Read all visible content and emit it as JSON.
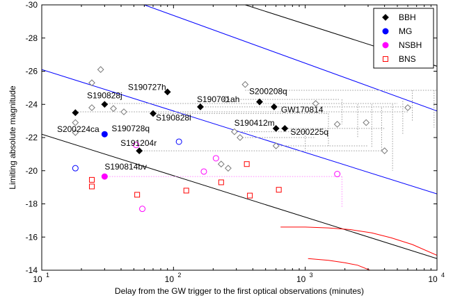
{
  "chart_data": {
    "type": "scatter",
    "xlabel": "Delay from the GW trigger to the first optical observations (minutes)",
    "ylabel": "Limiting absolute magnitude",
    "x_scale": "log",
    "xlim": [
      10,
      10000
    ],
    "ylim": [
      -30,
      -14
    ],
    "y_inverted": true,
    "x_ticks": [
      {
        "value": 10,
        "base": "10",
        "exp": "1"
      },
      {
        "value": 100,
        "base": "10",
        "exp": "2"
      },
      {
        "value": 1000,
        "base": "10",
        "exp": "3"
      },
      {
        "value": 10000,
        "base": "10",
        "exp": "4"
      }
    ],
    "y_ticks": [
      -30,
      -28,
      -26,
      -24,
      -22,
      -20,
      -18,
      -16,
      -14
    ],
    "y_tick_labels": [
      "-30",
      "-28",
      "-26",
      "-24",
      "-22",
      "-20",
      "-18",
      "-16",
      "-14"
    ],
    "legend": {
      "position": "top-right",
      "entries": [
        {
          "name": "BBH",
          "color": "#000000",
          "marker": "diamond-filled"
        },
        {
          "name": "MG",
          "color": "#0000ff",
          "marker": "circle-filled"
        },
        {
          "name": "NSBH",
          "color": "#ff00ff",
          "marker": "circle-filled"
        },
        {
          "name": "BNS",
          "color": "#ff0000",
          "marker": "square-open"
        }
      ]
    },
    "lines": [
      {
        "color": "#000000",
        "points": [
          [
            10,
            -22.2
          ],
          [
            10000,
            -14.7
          ]
        ]
      },
      {
        "color": "#000000",
        "points": [
          [
            350,
            -30
          ],
          [
            10000,
            -26.3
          ]
        ]
      },
      {
        "color": "#0000ff",
        "points": [
          [
            10,
            -26.1
          ],
          [
            10000,
            -18.6
          ]
        ]
      },
      {
        "color": "#0000ff",
        "points": [
          [
            60,
            -30
          ],
          [
            10000,
            -23.6
          ]
        ]
      }
    ],
    "curves": [
      {
        "color": "#ff0000",
        "points": [
          [
            650,
            -16.6
          ],
          [
            1000,
            -16.6
          ],
          [
            1500,
            -16.55
          ],
          [
            2200,
            -16.45
          ],
          [
            3200,
            -16.25
          ],
          [
            4500,
            -15.95
          ],
          [
            6500,
            -15.55
          ],
          [
            10000,
            -14.9
          ]
        ]
      },
      {
        "color": "#ff0000",
        "points": [
          [
            1050,
            -14.7
          ],
          [
            1500,
            -14.6
          ],
          [
            2000,
            -14.45
          ],
          [
            2500,
            -14.3
          ],
          [
            3100,
            -14.0
          ]
        ]
      }
    ],
    "series": [
      {
        "name": "BBH",
        "color": "#000000",
        "marker": "diamond-filled",
        "points": [
          [
            18,
            -23.5
          ],
          [
            30,
            -24.0
          ],
          [
            70,
            -23.45
          ],
          [
            55,
            -21.2
          ],
          [
            90,
            -24.75
          ],
          [
            160,
            -23.85
          ],
          [
            450,
            -24.15
          ],
          [
            580,
            -23.85
          ],
          [
            600,
            -22.55
          ],
          [
            700,
            -22.55
          ]
        ]
      },
      {
        "name": "MG",
        "color": "#0000ff",
        "marker": "circle-filled",
        "points": [
          [
            30,
            -22.2
          ]
        ]
      },
      {
        "name": "NSBH",
        "color": "#ff00ff",
        "marker": "circle-filled",
        "points": [
          [
            30,
            -19.65
          ]
        ]
      },
      {
        "name": "BNS",
        "color": "#ff0000",
        "marker": "square-open",
        "points": [
          [
            24,
            -19.45
          ],
          [
            24,
            -19.05
          ],
          [
            53,
            -18.55
          ],
          [
            125,
            -18.8
          ],
          [
            230,
            -19.3
          ],
          [
            360,
            -20.4
          ],
          [
            380,
            -18.5
          ],
          [
            630,
            -18.85
          ]
        ]
      },
      {
        "name": "",
        "color": "#000000",
        "marker": "diamond-open",
        "points": [
          [
            18,
            -22.9
          ],
          [
            18,
            -22.3
          ],
          [
            24,
            -25.3
          ],
          [
            24,
            -23.8
          ],
          [
            28,
            -26.1
          ],
          [
            35,
            -23.75
          ],
          [
            42,
            -23.55
          ],
          [
            250,
            -24.3
          ],
          [
            290,
            -22.35
          ],
          [
            320,
            -22.0
          ],
          [
            350,
            -25.2
          ],
          [
            600,
            -21.5
          ],
          [
            1200,
            -24.05
          ],
          [
            1750,
            -22.8
          ],
          [
            2900,
            -22.9
          ],
          [
            4000,
            -21.2
          ],
          [
            6000,
            -23.8
          ],
          [
            230,
            -20.4
          ],
          [
            260,
            -20.15
          ]
        ]
      },
      {
        "name": "",
        "color": "#0000ff",
        "marker": "circle-open",
        "points": [
          [
            18,
            -20.15
          ],
          [
            110,
            -21.75
          ]
        ]
      },
      {
        "name": "",
        "color": "#ff00ff",
        "marker": "circle-open",
        "points": [
          [
            58,
            -17.7
          ],
          [
            52,
            -21.55
          ],
          [
            170,
            -19.95
          ],
          [
            210,
            -20.75
          ],
          [
            1750,
            -19.8
          ]
        ]
      }
    ],
    "dotted_spans": [
      {
        "color": "#999999",
        "y": -24.85,
        "x": [
          350,
          10000
        ]
      },
      {
        "color": "#999999",
        "y": -24.3,
        "x": [
          250,
          1800
        ]
      },
      {
        "color": "#999999",
        "y": -24.05,
        "x": [
          30,
          5000
        ]
      },
      {
        "color": "#999999",
        "y": -23.85,
        "x": [
          160,
          6500
        ]
      },
      {
        "color": "#999999",
        "y": -23.55,
        "x": [
          18,
          6000
        ]
      },
      {
        "color": "#999999",
        "y": -23.45,
        "x": [
          70,
          1500
        ]
      },
      {
        "color": "#999999",
        "y": -22.55,
        "x": [
          600,
          4000
        ]
      },
      {
        "color": "#999999",
        "y": -22.35,
        "x": [
          290,
          1000
        ]
      },
      {
        "color": "#999999",
        "y": -22.0,
        "x": [
          320,
          1200
        ]
      },
      {
        "color": "#999999",
        "y": -21.5,
        "x": [
          600,
          3000
        ]
      },
      {
        "color": "#999999",
        "y": -21.2,
        "x": [
          55,
          4000
        ]
      },
      {
        "color": "#ff88ff",
        "y": -19.65,
        "x": [
          30,
          1900
        ]
      }
    ],
    "dotted_verticals": [
      {
        "color": "#999999",
        "x": 1900,
        "y": [
          -24.3,
          -22.8
        ]
      },
      {
        "color": "#999999",
        "x": 2500,
        "y": [
          -24.0,
          -22.0
        ]
      },
      {
        "color": "#999999",
        "x": 3200,
        "y": [
          -24.0,
          -21.4
        ]
      },
      {
        "color": "#999999",
        "x": 3800,
        "y": [
          -23.8,
          -21.2
        ]
      },
      {
        "color": "#999999",
        "x": 4600,
        "y": [
          -24.0,
          -20.0
        ]
      },
      {
        "color": "#999999",
        "x": 5500,
        "y": [
          -24.2,
          -22.2
        ]
      },
      {
        "color": "#999999",
        "x": 6500,
        "y": [
          -24.85,
          -23.0
        ]
      },
      {
        "color": "#999999",
        "x": 9500,
        "y": [
          -24.85,
          -22.6
        ]
      },
      {
        "color": "#999999",
        "x": 1500,
        "y": [
          -23.45,
          -21.5
        ]
      },
      {
        "color": "#999999",
        "x": 1000,
        "y": [
          -22.55,
          -21.2
        ]
      },
      {
        "color": "#ff88ff",
        "x": 1900,
        "y": [
          -19.65,
          -17.8
        ]
      }
    ],
    "annotations": [
      {
        "text": "S190727h",
        "x": 90,
        "y": -24.75,
        "anchor": "end",
        "dx": -2,
        "dy": -3
      },
      {
        "text": "S190828j",
        "x": 30,
        "y": -24.0,
        "anchor": "middle",
        "dx": 0,
        "dy": -9
      },
      {
        "text": "S190701ah",
        "x": 160,
        "y": -23.85,
        "anchor": "start",
        "dx": -5,
        "dy": -7
      },
      {
        "text": "S200208q",
        "x": 450,
        "y": -24.15,
        "anchor": "start",
        "dx": -15,
        "dy": -11
      },
      {
        "text": "GW170814",
        "x": 580,
        "y": -23.85,
        "anchor": "start",
        "dx": 10,
        "dy": 8
      },
      {
        "text": "S190828l",
        "x": 70,
        "y": -23.45,
        "anchor": "start",
        "dx": 4,
        "dy": 10
      },
      {
        "text": "S190412m",
        "x": 600,
        "y": -22.55,
        "anchor": "end",
        "dx": -2,
        "dy": -4
      },
      {
        "text": "S200225q",
        "x": 700,
        "y": -22.55,
        "anchor": "start",
        "dx": 8,
        "dy": 9
      },
      {
        "text": "S200224ca",
        "x": 18,
        "y": -23.5,
        "anchor": "middle",
        "dx": 4,
        "dy": 28
      },
      {
        "text": "S190728q",
        "x": 30,
        "y": -22.2,
        "anchor": "start",
        "dx": 10,
        "dy": -4
      },
      {
        "text": "S191204r",
        "x": 55,
        "y": -21.2,
        "anchor": "middle",
        "dx": -1,
        "dy": -7
      },
      {
        "text": "S190814bv",
        "x": 30,
        "y": -19.65,
        "anchor": "start",
        "dx": 0,
        "dy": -10
      }
    ]
  }
}
